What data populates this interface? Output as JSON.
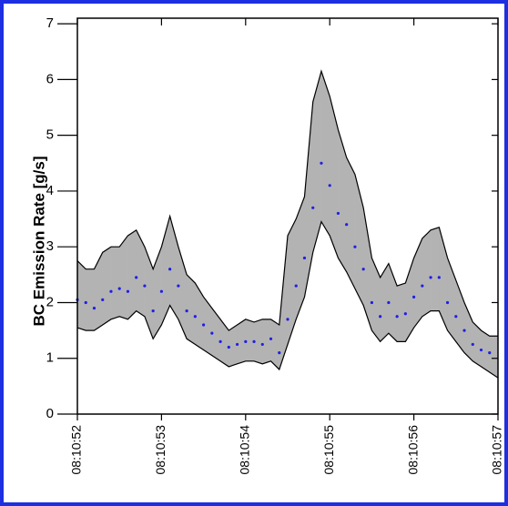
{
  "chart_data": {
    "type": "line",
    "ylabel": "BC Emission Rate [g/s]",
    "x": [
      29452,
      29452.1,
      29452.2,
      29452.3,
      29452.4,
      29452.5,
      29452.6,
      29452.7,
      29452.8,
      29452.9,
      29453,
      29453.1,
      29453.2,
      29453.3,
      29453.4,
      29453.5,
      29453.6,
      29453.7,
      29453.8,
      29453.9,
      29454,
      29454.1,
      29454.2,
      29454.3,
      29454.4,
      29454.5,
      29454.6,
      29454.7,
      29454.8,
      29454.9,
      29455,
      29455.1,
      29455.2,
      29455.3,
      29455.4,
      29455.5,
      29455.6,
      29455.7,
      29455.8,
      29455.9,
      29456,
      29456.1,
      29456.2,
      29456.3,
      29456.4,
      29456.5,
      29456.6,
      29456.7,
      29456.8,
      29456.9,
      29457
    ],
    "values": [
      2.05,
      2.0,
      1.9,
      2.05,
      2.2,
      2.25,
      2.2,
      2.45,
      2.3,
      1.85,
      2.2,
      2.6,
      2.3,
      1.85,
      1.75,
      1.6,
      1.45,
      1.3,
      1.2,
      1.25,
      1.3,
      1.3,
      1.25,
      1.35,
      1.1,
      1.7,
      2.3,
      2.8,
      3.7,
      4.5,
      4.1,
      3.6,
      3.4,
      3.0,
      2.6,
      2.0,
      1.75,
      2.0,
      1.75,
      1.8,
      2.1,
      2.3,
      2.45,
      2.45,
      2.0,
      1.75,
      1.5,
      1.25,
      1.15,
      1.1,
      null
    ],
    "color": "#1f1fe6",
    "band": {
      "color": "#b3b3b3",
      "upper": [
        2.75,
        2.6,
        2.6,
        2.9,
        3.0,
        3.0,
        3.2,
        3.3,
        3.0,
        2.6,
        3.0,
        3.55,
        3.0,
        2.5,
        2.35,
        2.1,
        1.9,
        1.7,
        1.5,
        1.6,
        1.7,
        1.65,
        1.7,
        1.7,
        1.6,
        3.2,
        3.5,
        3.9,
        5.6,
        6.15,
        5.7,
        5.1,
        4.6,
        4.3,
        3.7,
        2.8,
        2.45,
        2.7,
        2.3,
        2.35,
        2.8,
        3.15,
        3.3,
        3.35,
        2.8,
        2.4,
        2.0,
        1.65,
        1.5,
        1.4,
        1.4
      ],
      "lower": [
        1.55,
        1.5,
        1.5,
        1.6,
        1.7,
        1.75,
        1.7,
        1.85,
        1.75,
        1.35,
        1.6,
        1.95,
        1.7,
        1.35,
        1.25,
        1.15,
        1.05,
        0.95,
        0.85,
        0.9,
        0.95,
        0.95,
        0.9,
        0.95,
        0.8,
        1.25,
        1.7,
        2.1,
        2.9,
        3.45,
        3.2,
        2.8,
        2.55,
        2.25,
        1.95,
        1.5,
        1.3,
        1.45,
        1.3,
        1.3,
        1.55,
        1.75,
        1.85,
        1.85,
        1.5,
        1.3,
        1.1,
        0.95,
        0.85,
        0.75,
        0.65
      ]
    },
    "xlim": [
      29452,
      29457
    ],
    "xticks": [
      {
        "value": 29452,
        "label": "08:10:52"
      },
      {
        "value": 29453,
        "label": "08:10:53"
      },
      {
        "value": 29454,
        "label": "08:10:54"
      },
      {
        "value": 29455,
        "label": "08:10:55"
      },
      {
        "value": 29456,
        "label": "08:10:56"
      },
      {
        "value": 29457,
        "label": "08:10:57"
      }
    ],
    "ylim": [
      0,
      7.1
    ],
    "yticks": [
      0,
      1,
      2,
      3,
      4,
      5,
      6,
      7
    ]
  }
}
